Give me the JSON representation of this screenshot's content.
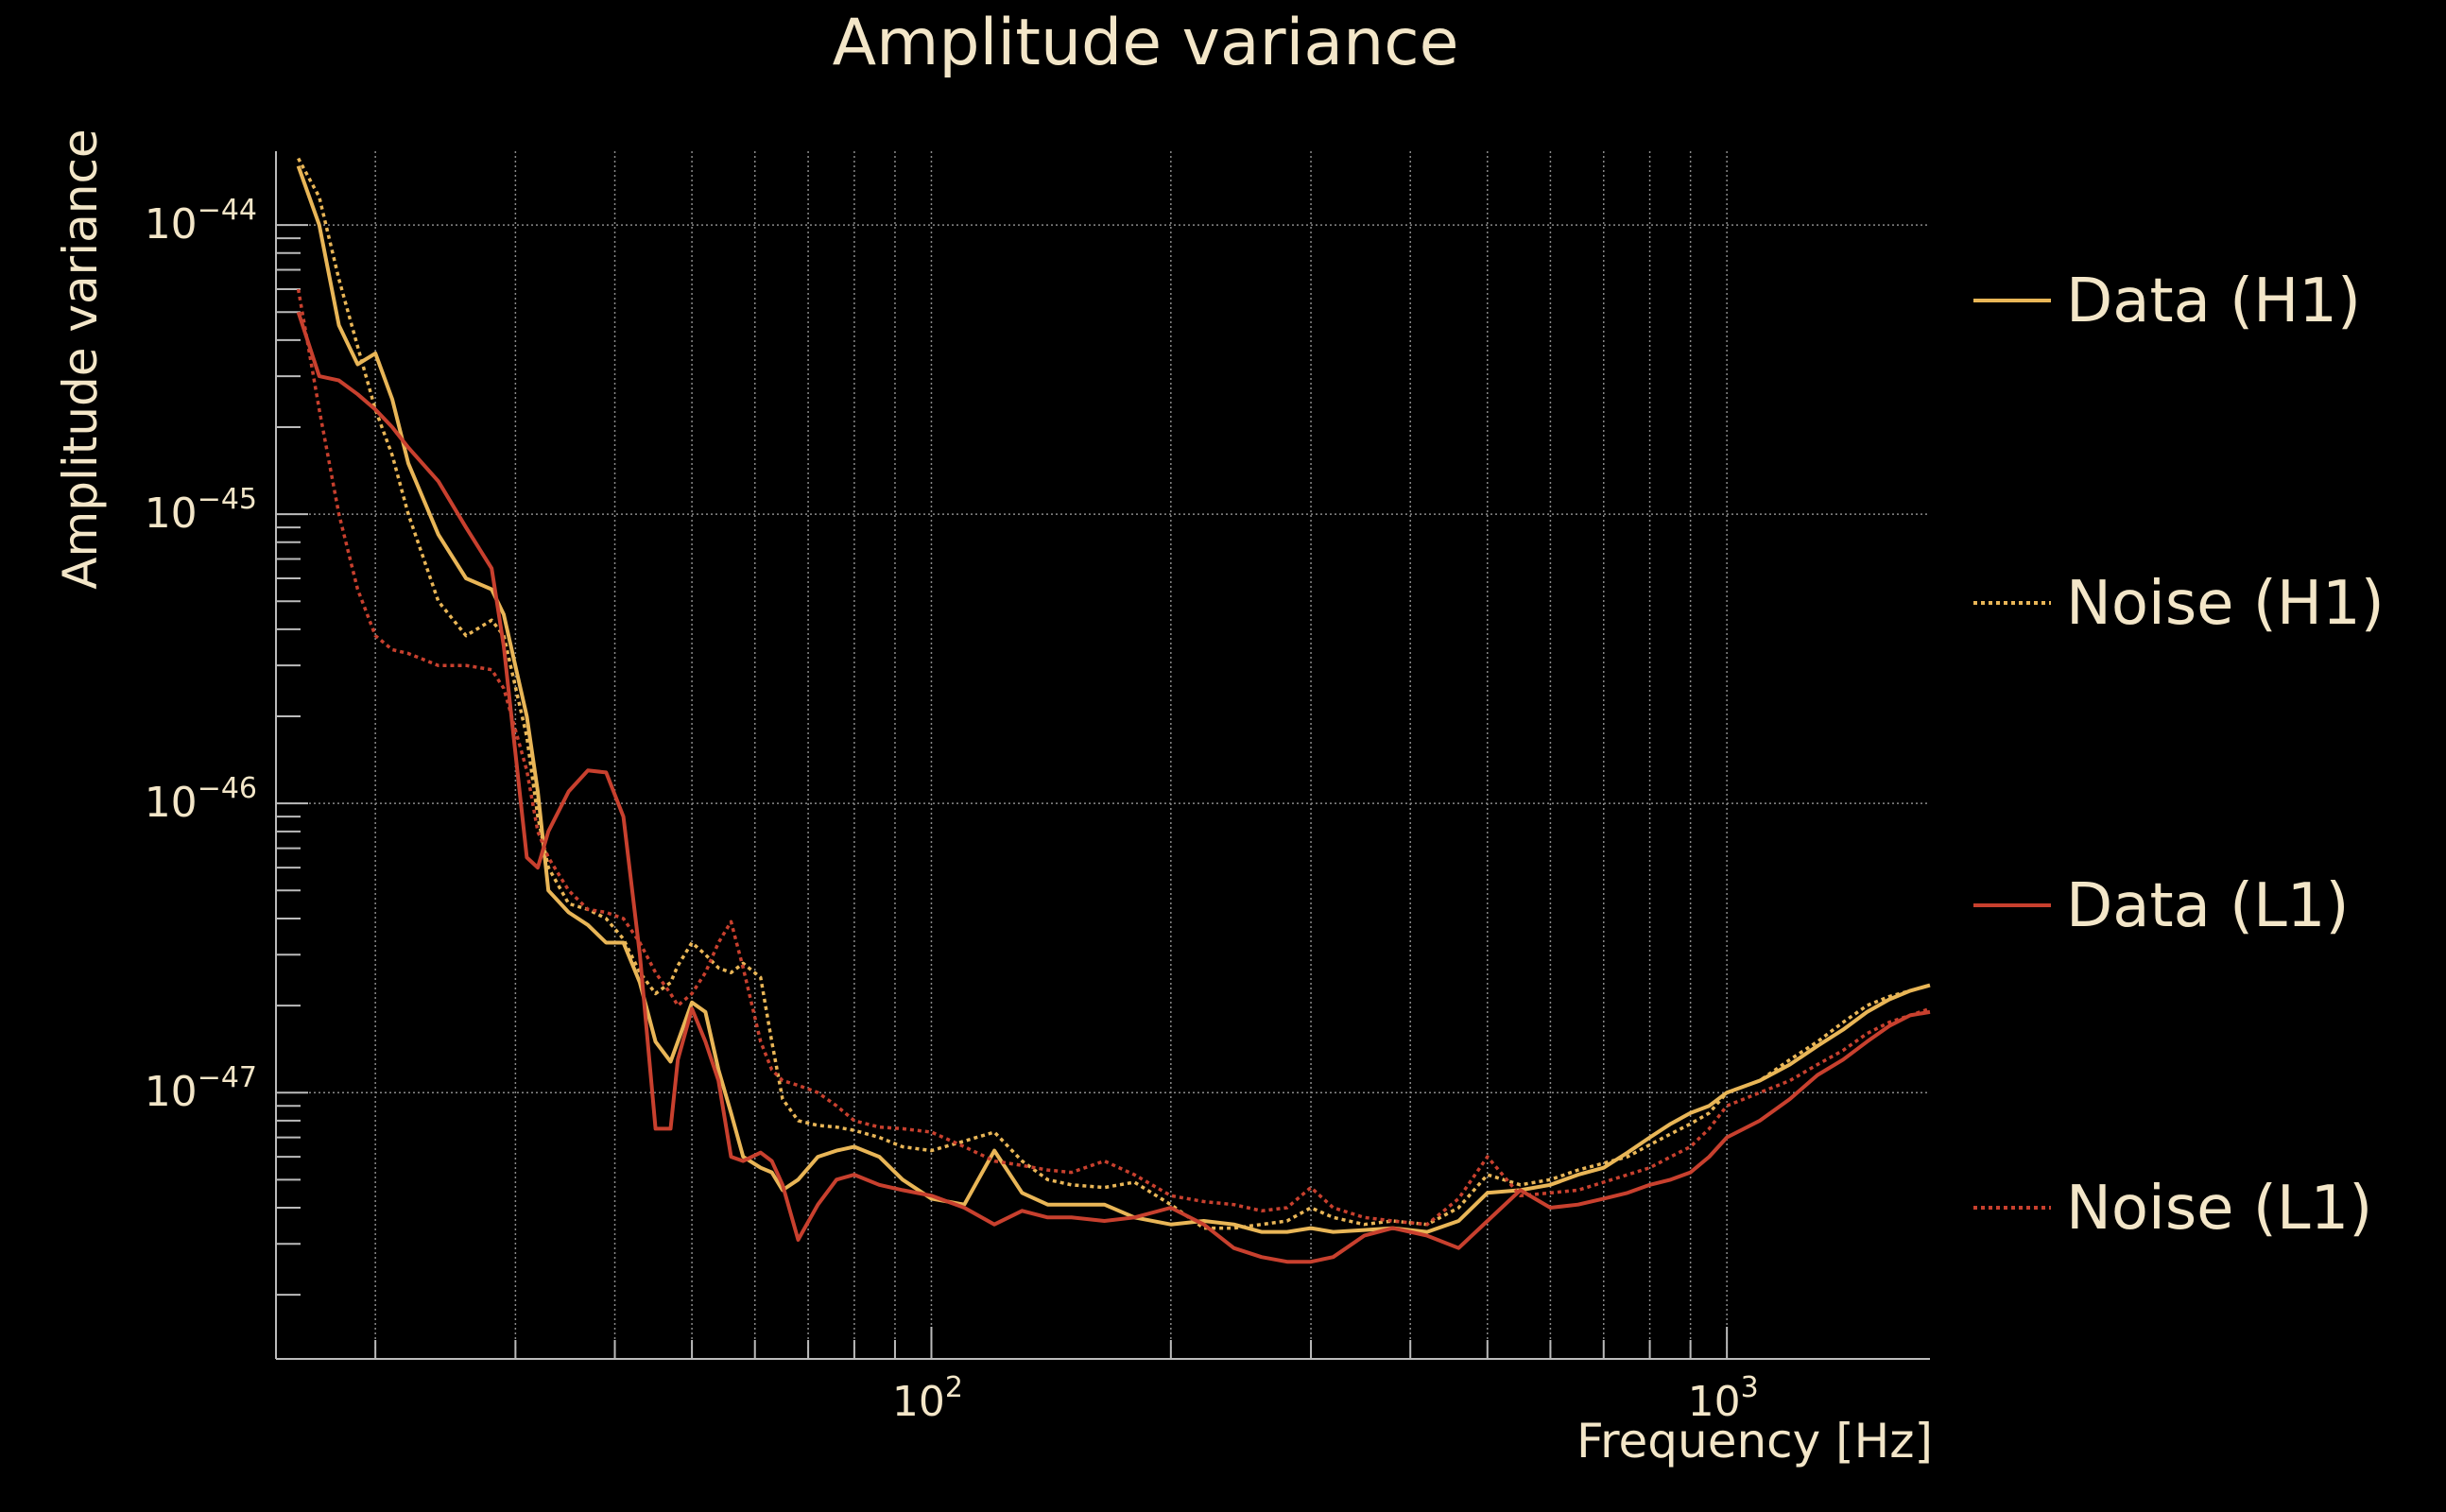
{
  "chart_data": {
    "type": "line",
    "title": "Amplitude variance",
    "xlabel": "Frequency [Hz]",
    "ylabel": "Amplitude variance",
    "x_scale": "log",
    "y_scale": "log",
    "xlim": [
      15,
      1800
    ],
    "ylim": [
      1.2e-48,
      1.8e-44
    ],
    "grid": true,
    "legend_position": "right",
    "x_ticks": [
      {
        "value": 100,
        "base": "10",
        "exp": "2"
      },
      {
        "value": 1000,
        "base": "10",
        "exp": "3"
      }
    ],
    "y_ticks": [
      {
        "value": 1e-47,
        "base": "10",
        "exp": "−47"
      },
      {
        "value": 1e-46,
        "base": "10",
        "exp": "−46"
      },
      {
        "value": 1e-45,
        "base": "10",
        "exp": "−45"
      },
      {
        "value": 1e-44,
        "base": "10",
        "exp": "−44"
      }
    ],
    "colors": {
      "background": "#000000",
      "text": "#f3e6c8",
      "axis": "#bbbbbb",
      "grid": "#8a8a8a"
    },
    "series": [
      {
        "name": "Data (H1)",
        "color": "#e9b657",
        "dash": "solid",
        "x": [
          16,
          17,
          18,
          19,
          20,
          21,
          22,
          24,
          26,
          28,
          29,
          31,
          32,
          33,
          35,
          37,
          39,
          41,
          43,
          45,
          47,
          48,
          50,
          52,
          54,
          56,
          58,
          61,
          63,
          65,
          68,
          72,
          76,
          80,
          86,
          92,
          100,
          110,
          120,
          130,
          140,
          150,
          165,
          180,
          200,
          220,
          240,
          260,
          280,
          300,
          320,
          350,
          380,
          420,
          460,
          500,
          550,
          600,
          650,
          700,
          750,
          800,
          850,
          900,
          950,
          1000,
          1100,
          1200,
          1300,
          1400,
          1500,
          1600,
          1700,
          1800
        ],
        "y": [
          1.6e-44,
          1e-44,
          4.5e-45,
          3.3e-45,
          3.6e-45,
          2.5e-45,
          1.5e-45,
          8.5e-46,
          6e-46,
          5.5e-46,
          4.5e-46,
          2e-46,
          1.1e-46,
          5e-47,
          4.2e-47,
          3.8e-47,
          3.3e-47,
          3.3e-47,
          2.4e-47,
          1.5e-47,
          1.28e-47,
          1.5e-47,
          2.05e-47,
          1.9e-47,
          1.2e-47,
          8.5e-48,
          6e-48,
          5.5e-48,
          5.3e-48,
          4.6e-48,
          5e-48,
          6e-48,
          6.3e-48,
          6.5e-48,
          6e-48,
          5e-48,
          4.3e-48,
          4.1e-48,
          6.3e-48,
          4.5e-48,
          4.1e-48,
          4.1e-48,
          4.1e-48,
          3.7e-48,
          3.5e-48,
          3.6e-48,
          3.5e-48,
          3.3e-48,
          3.3e-48,
          3.4e-48,
          3.3e-48,
          3.35e-48,
          3.4e-48,
          3.3e-48,
          3.6e-48,
          4.5e-48,
          4.6e-48,
          4.8e-48,
          5.2e-48,
          5.5e-48,
          6.2e-48,
          7e-48,
          7.8e-48,
          8.5e-48,
          9e-48,
          1e-47,
          1.1e-47,
          1.25e-47,
          1.45e-47,
          1.65e-47,
          1.9e-47,
          2.1e-47,
          2.25e-47,
          2.35e-47
        ]
      },
      {
        "name": "Noise (H1)",
        "color": "#e9b657",
        "dash": "dotted",
        "x": [
          16,
          17,
          18,
          19,
          20,
          21,
          22,
          24,
          26,
          28,
          29,
          31,
          32,
          33,
          35,
          37,
          39,
          41,
          43,
          45,
          47,
          48,
          50,
          52,
          54,
          56,
          58,
          61,
          63,
          65,
          68,
          72,
          76,
          80,
          86,
          92,
          100,
          110,
          120,
          130,
          140,
          150,
          165,
          180,
          200,
          220,
          240,
          260,
          280,
          300,
          320,
          350,
          380,
          420,
          460,
          500,
          550,
          600,
          650,
          700,
          750,
          800,
          850,
          900,
          950,
          1000,
          1100,
          1200,
          1300,
          1400,
          1500,
          1600,
          1700,
          1800
        ],
        "y": [
          1.7e-44,
          1.25e-44,
          6.5e-45,
          3.8e-45,
          2.3e-45,
          1.6e-45,
          1e-45,
          5e-46,
          3.8e-46,
          4.3e-46,
          3.8e-46,
          1.7e-46,
          9e-47,
          6e-47,
          4.5e-47,
          4.3e-47,
          4e-47,
          3.4e-47,
          2.6e-47,
          2.2e-47,
          2.4e-47,
          2.75e-47,
          3.3e-47,
          3e-47,
          2.7e-47,
          2.6e-47,
          2.8e-47,
          2.5e-47,
          1.5e-47,
          9.5e-48,
          8e-48,
          7.7e-48,
          7.6e-48,
          7.4e-48,
          7e-48,
          6.5e-48,
          6.3e-48,
          6.8e-48,
          7.3e-48,
          5.8e-48,
          5e-48,
          4.8e-48,
          4.7e-48,
          4.9e-48,
          4.1e-48,
          3.4e-48,
          3.4e-48,
          3.5e-48,
          3.6e-48,
          4e-48,
          3.7e-48,
          3.5e-48,
          3.6e-48,
          3.5e-48,
          4e-48,
          5.2e-48,
          4.8e-48,
          5e-48,
          5.4e-48,
          5.7e-48,
          6e-48,
          6.6e-48,
          7.2e-48,
          7.8e-48,
          8.5e-48,
          1e-47,
          1.1e-47,
          1.3e-47,
          1.5e-47,
          1.75e-47,
          2e-47,
          2.15e-47,
          2.25e-47,
          2.35e-47
        ]
      },
      {
        "name": "Data (L1)",
        "color": "#c8402e",
        "dash": "solid",
        "x": [
          16,
          17,
          18,
          19,
          20,
          21,
          22,
          24,
          26,
          28,
          29,
          31,
          32,
          33,
          35,
          37,
          39,
          41,
          43,
          45,
          47,
          48,
          50,
          52,
          54,
          56,
          58,
          61,
          63,
          65,
          68,
          72,
          76,
          80,
          86,
          92,
          100,
          110,
          120,
          130,
          140,
          150,
          165,
          180,
          200,
          220,
          240,
          260,
          280,
          300,
          320,
          350,
          380,
          420,
          460,
          500,
          550,
          600,
          650,
          700,
          750,
          800,
          850,
          900,
          950,
          1000,
          1100,
          1200,
          1300,
          1400,
          1500,
          1600,
          1700,
          1800
        ],
        "y": [
          5e-45,
          3e-45,
          2.9e-45,
          2.6e-45,
          2.3e-45,
          2e-45,
          1.7e-45,
          1.3e-45,
          9e-46,
          6.5e-46,
          3.5e-46,
          6.5e-47,
          6e-47,
          8e-47,
          1.1e-46,
          1.3e-46,
          1.28e-46,
          9e-47,
          3e-47,
          7.5e-48,
          7.5e-48,
          1.3e-47,
          1.95e-47,
          1.5e-47,
          1.1e-47,
          6e-48,
          5.8e-48,
          6.2e-48,
          5.8e-48,
          4.8e-48,
          3.1e-48,
          4.1e-48,
          5e-48,
          5.2e-48,
          4.8e-48,
          4.6e-48,
          4.4e-48,
          4e-48,
          3.5e-48,
          3.9e-48,
          3.7e-48,
          3.7e-48,
          3.6e-48,
          3.7e-48,
          4e-48,
          3.5e-48,
          2.9e-48,
          2.7e-48,
          2.6e-48,
          2.6e-48,
          2.7e-48,
          3.2e-48,
          3.4e-48,
          3.2e-48,
          2.9e-48,
          3.6e-48,
          4.6e-48,
          4e-48,
          4.1e-48,
          4.3e-48,
          4.5e-48,
          4.8e-48,
          5e-48,
          5.3e-48,
          6e-48,
          7e-48,
          8e-48,
          9.5e-48,
          1.15e-47,
          1.3e-47,
          1.5e-47,
          1.7e-47,
          1.85e-47,
          1.9e-47
        ]
      },
      {
        "name": "Noise (L1)",
        "color": "#c8402e",
        "dash": "dotted",
        "x": [
          16,
          17,
          18,
          19,
          20,
          21,
          22,
          24,
          26,
          28,
          29,
          31,
          32,
          33,
          35,
          37,
          39,
          41,
          43,
          45,
          47,
          48,
          50,
          52,
          54,
          56,
          58,
          61,
          63,
          65,
          68,
          72,
          76,
          80,
          86,
          92,
          100,
          110,
          120,
          130,
          140,
          150,
          165,
          180,
          200,
          220,
          240,
          260,
          280,
          300,
          320,
          350,
          380,
          420,
          460,
          500,
          550,
          600,
          650,
          700,
          750,
          800,
          850,
          900,
          950,
          1000,
          1100,
          1200,
          1300,
          1400,
          1500,
          1600,
          1700,
          1800
        ],
        "y": [
          6e-45,
          2.3e-45,
          1e-45,
          5.5e-46,
          3.8e-46,
          3.4e-46,
          3.3e-46,
          3e-46,
          3e-46,
          2.9e-46,
          2.5e-46,
          1.3e-46,
          8e-47,
          6.5e-47,
          5e-47,
          4.3e-47,
          4.2e-47,
          4e-47,
          3.3e-47,
          2.6e-47,
          2.2e-47,
          2e-47,
          2.2e-47,
          2.6e-47,
          3.3e-47,
          3.9e-47,
          2.7e-47,
          1.5e-47,
          1.2e-47,
          1.1e-47,
          1.06e-47,
          1e-47,
          9e-48,
          8e-48,
          7.6e-48,
          7.5e-48,
          7.3e-48,
          6.5e-48,
          5.8e-48,
          5.6e-48,
          5.4e-48,
          5.3e-48,
          5.8e-48,
          5.2e-48,
          4.4e-48,
          4.2e-48,
          4.1e-48,
          3.9e-48,
          4e-48,
          4.7e-48,
          4e-48,
          3.7e-48,
          3.6e-48,
          3.5e-48,
          4.3e-48,
          6e-48,
          4.4e-48,
          4.5e-48,
          4.6e-48,
          4.9e-48,
          5.2e-48,
          5.5e-48,
          6e-48,
          6.5e-48,
          7.5e-48,
          9e-48,
          1e-47,
          1.1e-47,
          1.25e-47,
          1.4e-47,
          1.6e-47,
          1.75e-47,
          1.85e-47,
          1.95e-47
        ]
      }
    ]
  }
}
